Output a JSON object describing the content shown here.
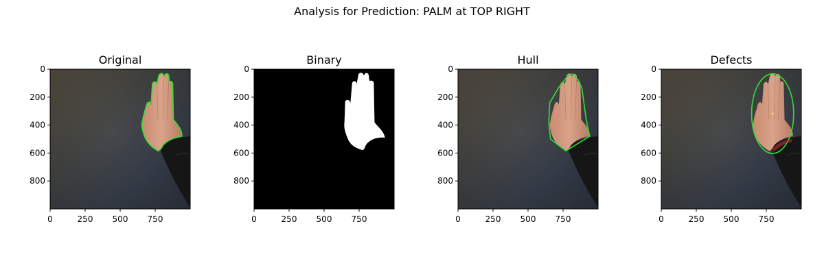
{
  "figure": {
    "title": "Analysis for Prediction: PALM at TOP RIGHT"
  },
  "chart_data": [
    {
      "type": "image",
      "title": "Original",
      "xticks": [
        0,
        250,
        500,
        750
      ],
      "yticks": [
        0,
        200,
        400,
        600,
        800
      ],
      "xlim": [
        0,
        1000
      ],
      "ylim": [
        1000,
        0
      ],
      "image_kind": "photo",
      "overlay": "contour",
      "overlay_color": "#33dd33"
    },
    {
      "type": "image",
      "title": "Binary",
      "xticks": [
        0,
        250,
        500,
        750
      ],
      "yticks": [
        0,
        200,
        400,
        600,
        800
      ],
      "xlim": [
        0,
        1000
      ],
      "ylim": [
        1000,
        0
      ],
      "image_kind": "mask",
      "overlay": "none"
    },
    {
      "type": "image",
      "title": "Hull",
      "xticks": [
        0,
        250,
        500,
        750
      ],
      "yticks": [
        0,
        200,
        400,
        600,
        800
      ],
      "xlim": [
        0,
        1000
      ],
      "ylim": [
        1000,
        0
      ],
      "image_kind": "photo",
      "overlay": "hull",
      "overlay_color": "#33dd33"
    },
    {
      "type": "image",
      "title": "Defects",
      "xticks": [
        0,
        250,
        500,
        750
      ],
      "yticks": [
        0,
        200,
        400,
        600,
        800
      ],
      "xlim": [
        0,
        1000
      ],
      "ylim": [
        1000,
        0
      ],
      "image_kind": "photo",
      "overlay": "ellipse",
      "overlay_color": "#33dd33"
    }
  ]
}
